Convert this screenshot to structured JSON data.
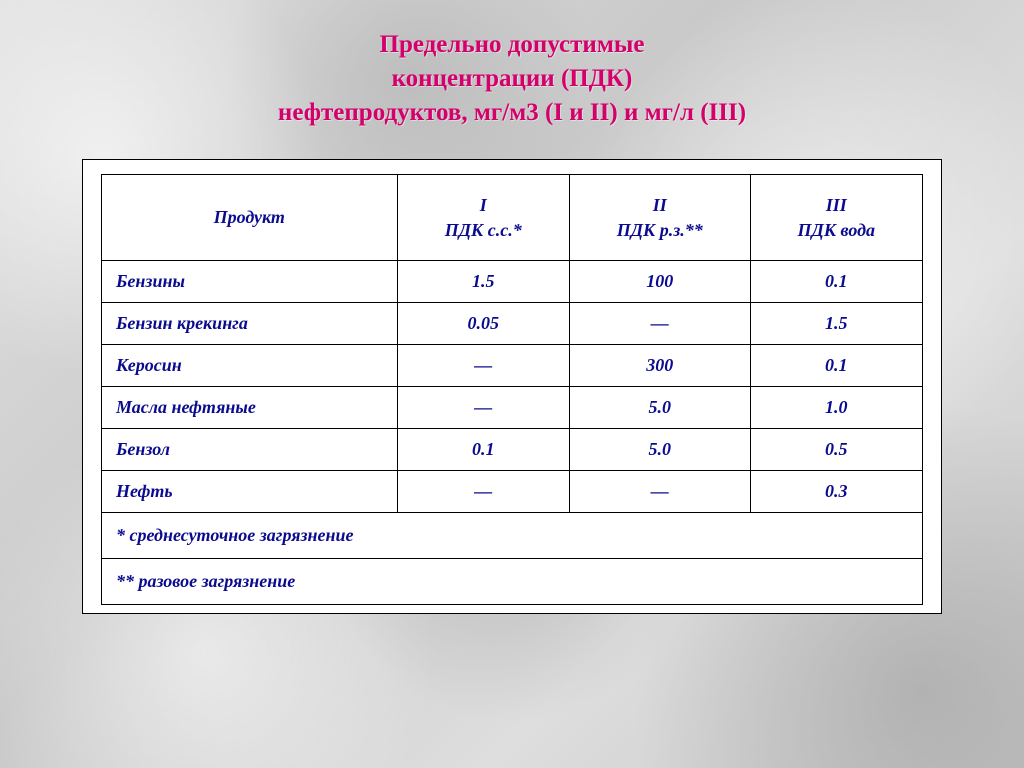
{
  "title_lines": [
    "Предельно допустимые",
    "концентрации (ПДК)",
    "нефтепродуктов, мг/м3 (I и II) и мг/л (III)"
  ],
  "table": {
    "columns": [
      {
        "line1": "Продукт",
        "line2": ""
      },
      {
        "line1": "I",
        "line2": "ПДК с.с.*"
      },
      {
        "line1": "II",
        "line2": "ПДК р.з.**"
      },
      {
        "line1": "III",
        "line2": "ПДК вода"
      }
    ],
    "rows": [
      {
        "label": "Бензины",
        "c1": "1.5",
        "c2": "100",
        "c3": "0.1"
      },
      {
        "label": "Бензин крекинга",
        "c1": "0.05",
        "c2": "—",
        "c3": "1.5"
      },
      {
        "label": "Керосин",
        "c1": "—",
        "c2": "300",
        "c3": "0.1"
      },
      {
        "label": "Масла нефтяные",
        "c1": "—",
        "c2": "5.0",
        "c3": "1.0"
      },
      {
        "label": "Бензол",
        "c1": "0.1",
        "c2": "5.0",
        "c3": "0.5"
      },
      {
        "label": "Нефть",
        "c1": "—",
        "c2": "—",
        "c3": "0.3"
      }
    ],
    "footnotes": [
      "* среднесуточное загрязнение",
      "** разовое загрязнение"
    ],
    "colors": {
      "title_color": "#d4006c",
      "text_color": "#0b0b8f",
      "border_color": "#000000",
      "card_bg": "#ffffff"
    }
  }
}
